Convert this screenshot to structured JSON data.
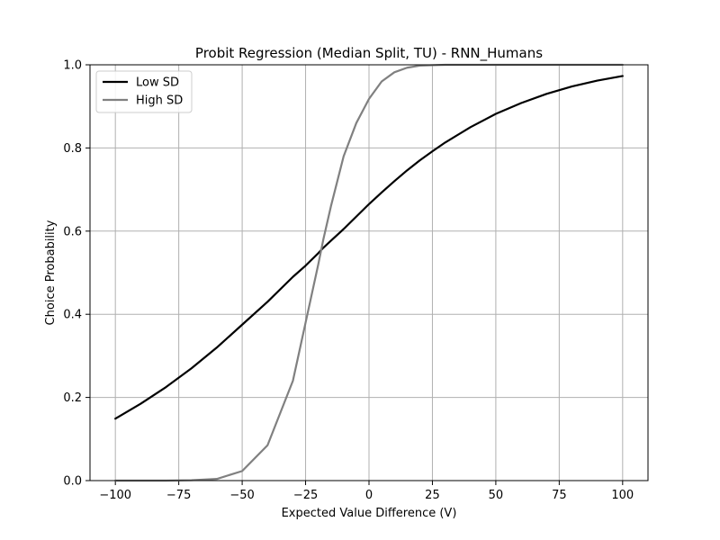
{
  "chart_data": {
    "type": "line",
    "title": "Probit Regression (Median Split, TU) - RNN_Humans",
    "xlabel": "Expected Value Difference (V)",
    "ylabel": "Choice Probability",
    "xlim": [
      -110,
      110
    ],
    "ylim": [
      0.0,
      1.0
    ],
    "xticks": [
      -100,
      -75,
      -50,
      -25,
      0,
      25,
      50,
      75,
      100
    ],
    "xtick_labels": [
      "−100",
      "−75",
      "−50",
      "−25",
      "0",
      "25",
      "50",
      "75",
      "100"
    ],
    "yticks": [
      0.0,
      0.2,
      0.4,
      0.6,
      0.8,
      1.0
    ],
    "ytick_labels": [
      "0.0",
      "0.2",
      "0.4",
      "0.6",
      "0.8",
      "1.0"
    ],
    "grid": true,
    "legend_position": "top-left",
    "x": [
      -100,
      -90,
      -80,
      -70,
      -60,
      -50,
      -40,
      -30,
      -25,
      -20,
      -18,
      -15,
      -10,
      -5,
      0,
      5,
      10,
      15,
      20,
      25,
      30,
      40,
      50,
      60,
      70,
      80,
      90,
      100
    ],
    "series": [
      {
        "name": "Low SD",
        "color": "#000000",
        "values": [
          0.149,
          0.185,
          0.225,
          0.27,
          0.32,
          0.375,
          0.43,
          0.49,
          0.517,
          0.547,
          0.56,
          0.577,
          0.605,
          0.635,
          0.665,
          0.693,
          0.72,
          0.746,
          0.77,
          0.792,
          0.813,
          0.85,
          0.882,
          0.908,
          0.93,
          0.948,
          0.962,
          0.973
        ]
      },
      {
        "name": "High SD",
        "color": "#808080",
        "values": [
          0.0,
          0.0,
          0.0,
          0.001,
          0.004,
          0.023,
          0.085,
          0.24,
          0.38,
          0.52,
          0.58,
          0.66,
          0.78,
          0.86,
          0.918,
          0.96,
          0.982,
          0.993,
          0.998,
          0.999,
          1.0,
          1.0,
          1.0,
          1.0,
          1.0,
          1.0,
          1.0,
          1.0
        ]
      }
    ]
  }
}
